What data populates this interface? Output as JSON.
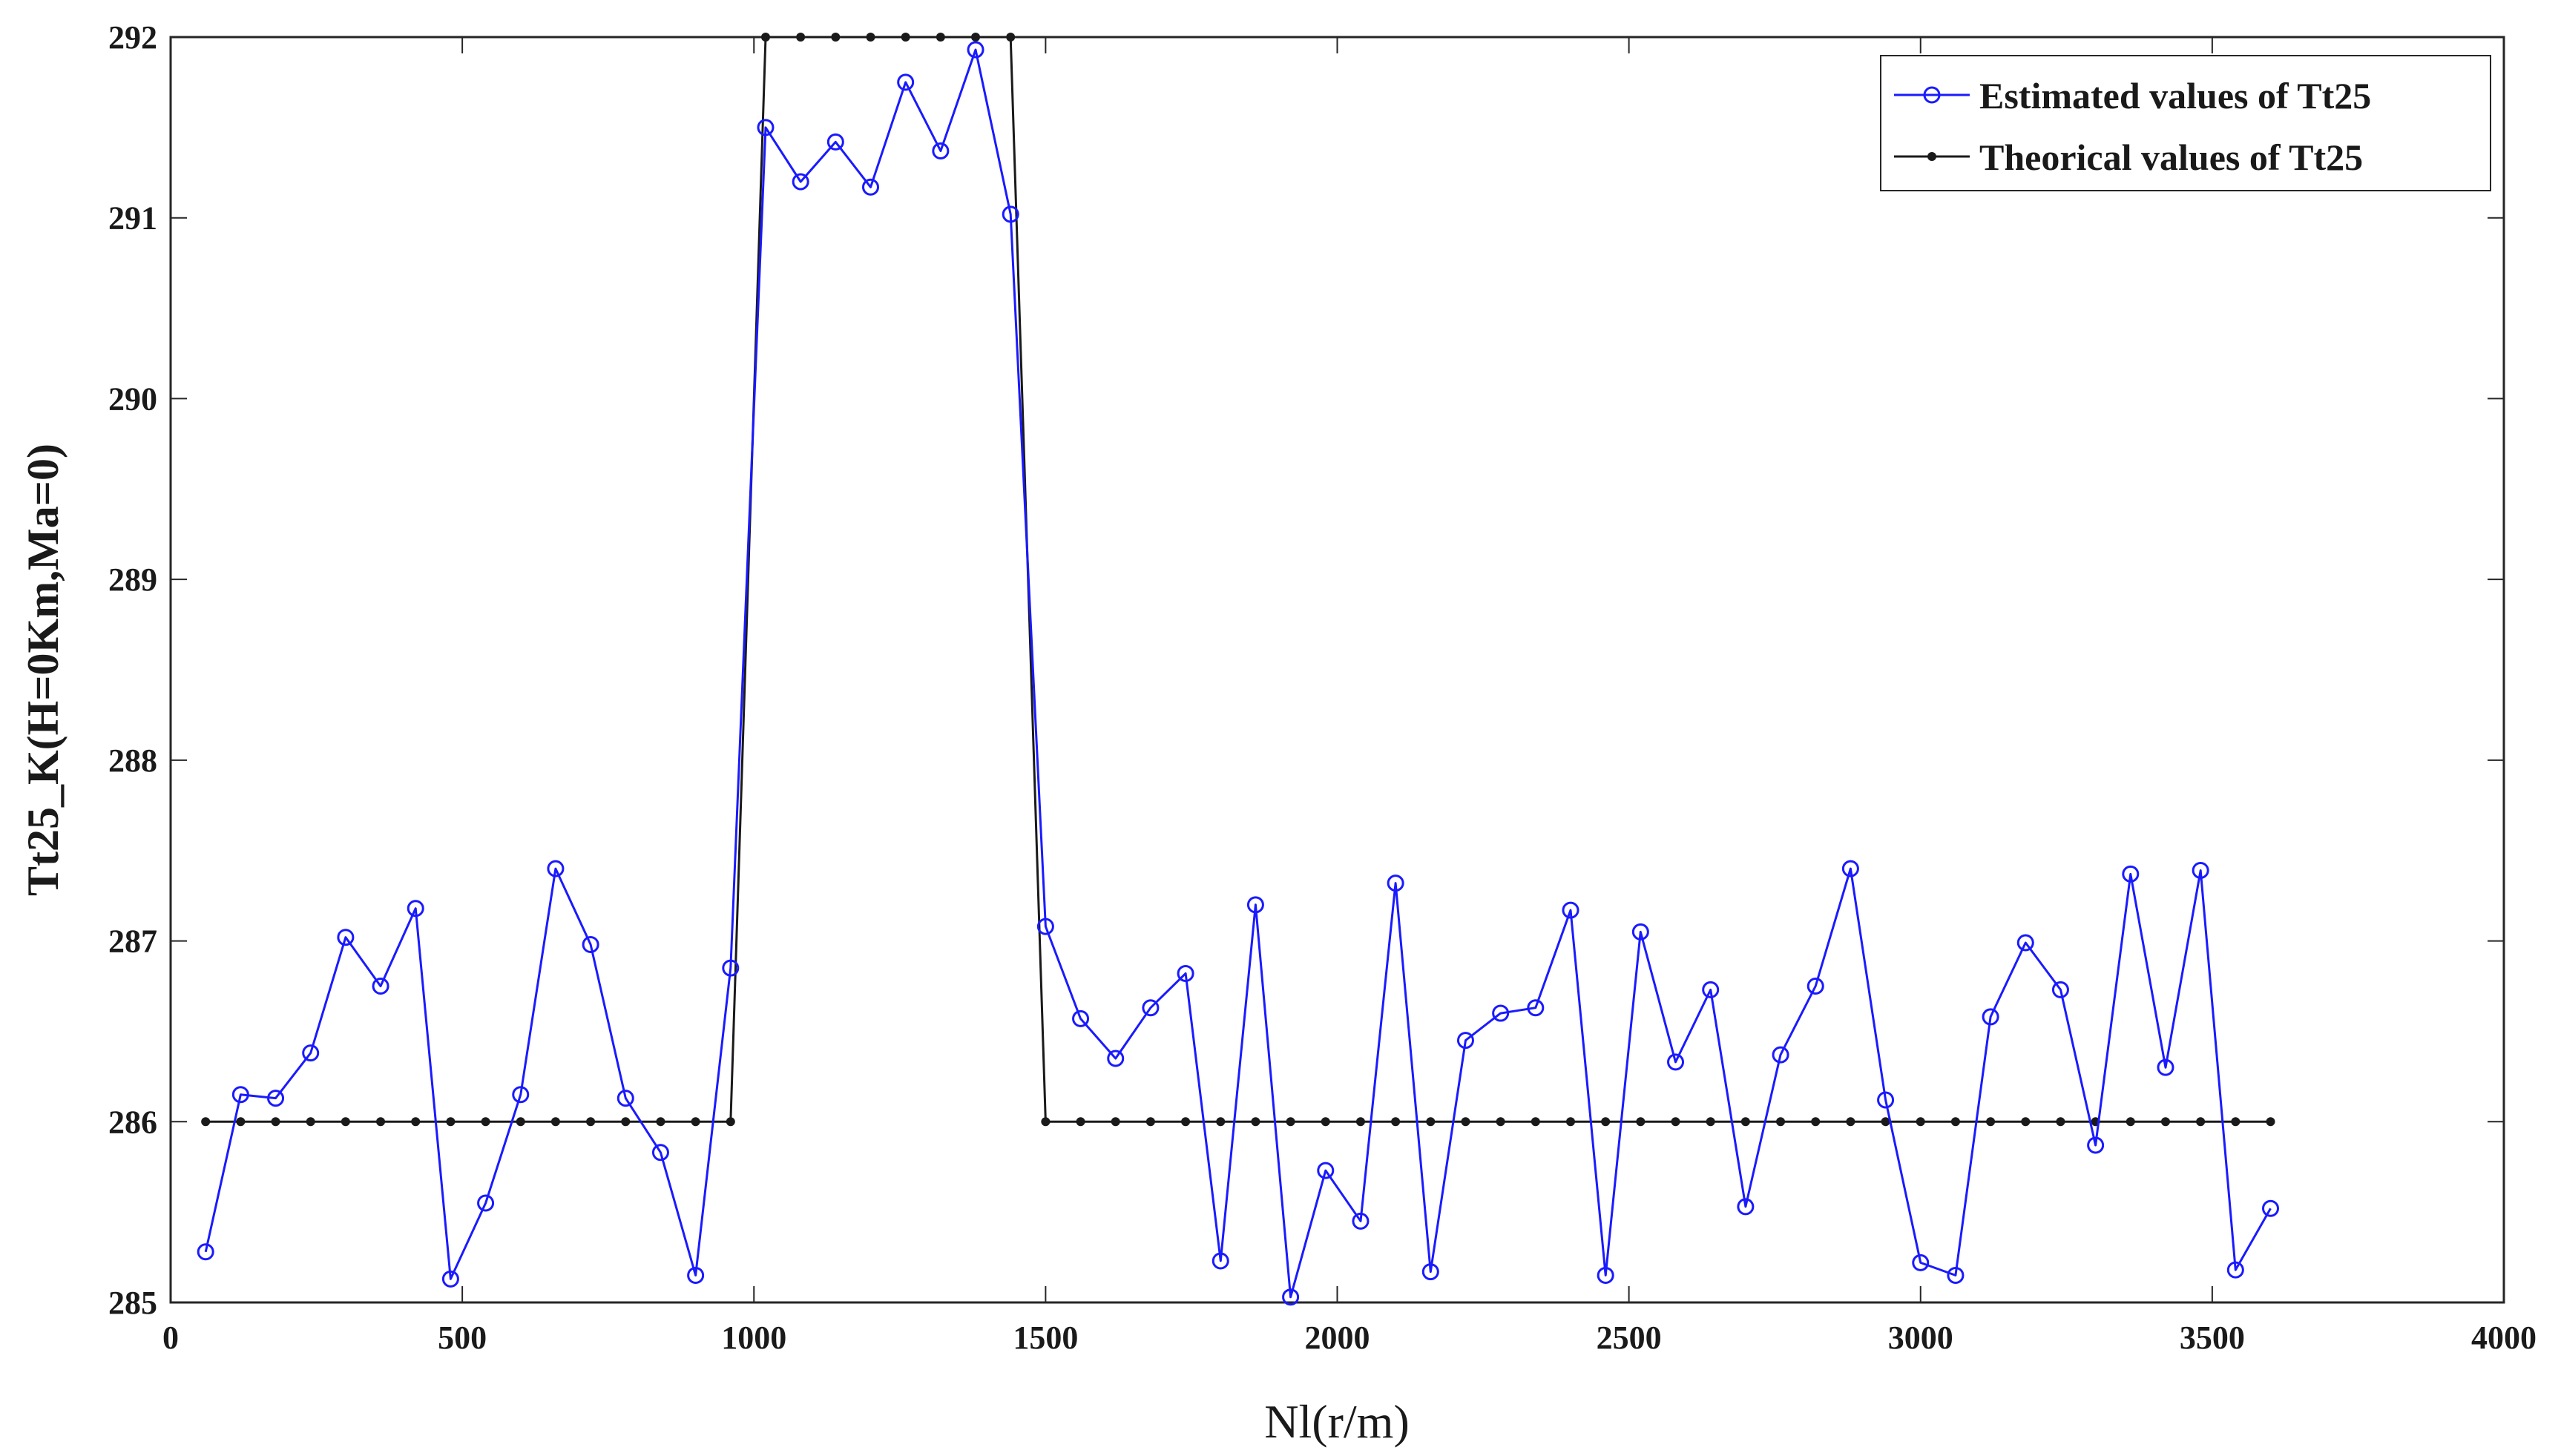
{
  "chart_data": {
    "type": "line",
    "title": "",
    "xlabel": "Nl(r/m)",
    "ylabel": "Tt25_K(H=0Km,Ma=0)",
    "xlim": [
      0,
      4000
    ],
    "ylim": [
      285,
      292
    ],
    "xticks": [
      0,
      500,
      1000,
      1500,
      2000,
      2500,
      3000,
      3500,
      4000
    ],
    "yticks": [
      285,
      286,
      287,
      288,
      289,
      290,
      291,
      292
    ],
    "grid": false,
    "legend_position": "top-right",
    "series": [
      {
        "name": "Estimated values of Tt25",
        "color": "#1a1aff",
        "marker": "circle",
        "x": [
          60,
          120,
          180,
          240,
          300,
          360,
          420,
          480,
          540,
          600,
          660,
          720,
          780,
          840,
          900,
          960,
          1020,
          1080,
          1140,
          1200,
          1260,
          1320,
          1380,
          1440,
          1500,
          1560,
          1620,
          1680,
          1740,
          1800,
          1860,
          1920,
          1980,
          2040,
          2100,
          2160,
          2220,
          2280,
          2340,
          2400,
          2460,
          2520,
          2580,
          2640,
          2700,
          2760,
          2820,
          2880,
          2940,
          3000,
          3060,
          3120,
          3180,
          3240,
          3300,
          3360,
          3420,
          3480,
          3540,
          3600
        ],
        "y": [
          285.28,
          286.15,
          286.13,
          286.38,
          287.02,
          286.75,
          287.18,
          285.13,
          285.55,
          286.15,
          287.4,
          286.98,
          286.13,
          285.83,
          285.15,
          286.85,
          291.5,
          291.2,
          291.42,
          291.17,
          291.75,
          291.37,
          291.93,
          291.02,
          287.08,
          286.57,
          286.35,
          286.63,
          286.82,
          285.23,
          287.2,
          285.03,
          285.73,
          285.45,
          287.32,
          285.17,
          286.45,
          286.6,
          286.63,
          287.17,
          285.15,
          287.05,
          286.33,
          286.73,
          285.53,
          286.37,
          286.75,
          287.4,
          286.12,
          285.22,
          285.15,
          286.58,
          286.99,
          286.73,
          285.87,
          287.37,
          286.3,
          287.39,
          285.18,
          285.52
        ]
      },
      {
        "name": "Theorical values of Tt25",
        "color": "#1a1a1a",
        "marker": "star",
        "x": [
          60,
          120,
          180,
          240,
          300,
          360,
          420,
          480,
          540,
          600,
          660,
          720,
          780,
          840,
          900,
          960,
          1020,
          1080,
          1140,
          1200,
          1260,
          1320,
          1380,
          1440,
          1500,
          1560,
          1620,
          1680,
          1740,
          1800,
          1860,
          1920,
          1980,
          2040,
          2100,
          2160,
          2220,
          2280,
          2340,
          2400,
          2460,
          2520,
          2580,
          2640,
          2700,
          2760,
          2820,
          2880,
          2940,
          3000,
          3060,
          3120,
          3180,
          3240,
          3300,
          3360,
          3420,
          3480,
          3540,
          3600
        ],
        "y": [
          286,
          286,
          286,
          286,
          286,
          286,
          286,
          286,
          286,
          286,
          286,
          286,
          286,
          286,
          286,
          286,
          292,
          292,
          292,
          292,
          292,
          292,
          292,
          292,
          286,
          286,
          286,
          286,
          286,
          286,
          286,
          286,
          286,
          286,
          286,
          286,
          286,
          286,
          286,
          286,
          286,
          286,
          286,
          286,
          286,
          286,
          286,
          286,
          286,
          286,
          286,
          286,
          286,
          286,
          286,
          286,
          286,
          286,
          286,
          286
        ]
      }
    ]
  }
}
